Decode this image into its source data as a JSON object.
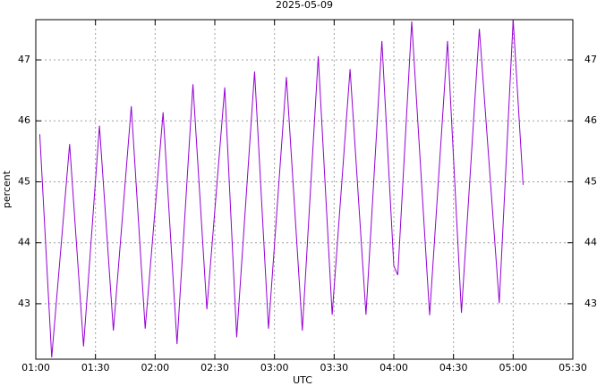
{
  "chart_data": {
    "type": "line",
    "title": "2025-05-09",
    "xlabel": "UTC",
    "ylabel": "percent",
    "x": [
      "01:02",
      "01:08",
      "01:17",
      "01:24",
      "01:32",
      "01:39",
      "01:48",
      "01:55",
      "02:04",
      "02:11",
      "02:19",
      "02:26",
      "02:35",
      "02:41",
      "02:50",
      "02:57",
      "03:06",
      "03:14",
      "03:22",
      "03:29",
      "03:38",
      "03:46",
      "03:54",
      "04:00",
      "04:02",
      "04:09",
      "04:18",
      "04:27",
      "04:34",
      "04:43",
      "04:53",
      "05:00",
      "05:05"
    ],
    "series": [
      {
        "color": "#9400d3",
        "values": [
          45.78,
          42.12,
          45.62,
          42.3,
          45.92,
          42.56,
          46.24,
          42.59,
          46.14,
          42.34,
          46.6,
          42.91,
          46.55,
          42.45,
          46.81,
          42.59,
          46.72,
          42.56,
          47.06,
          42.82,
          46.85,
          42.82,
          47.31,
          43.62,
          43.47,
          47.63,
          42.81,
          47.31,
          42.85,
          47.51,
          43.01,
          47.66,
          44.95
        ]
      }
    ],
    "xlim": [
      "01:00",
      "05:30"
    ],
    "xticks": [
      "01:00",
      "01:30",
      "02:00",
      "02:30",
      "03:00",
      "03:30",
      "04:00",
      "04:30",
      "05:00",
      "05:30"
    ],
    "ylim": [
      42.09,
      47.66
    ],
    "yticks": [
      43,
      44,
      45,
      46,
      47
    ],
    "grid": true
  }
}
